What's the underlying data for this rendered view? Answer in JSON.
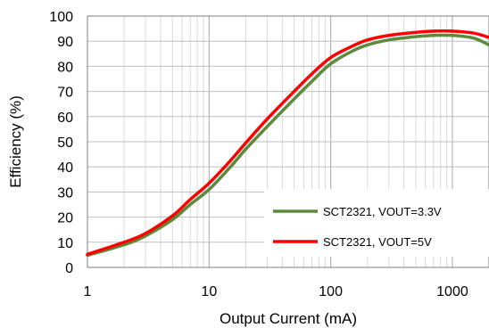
{
  "chart_data": {
    "type": "line",
    "title": "",
    "xlabel": "Output Current (mA)",
    "ylabel": "Efficiency (%)",
    "xscale": "log",
    "xlim": [
      1,
      2000
    ],
    "ylim": [
      0,
      100
    ],
    "xticks": [
      1,
      10,
      100,
      1000
    ],
    "xtick_labels": [
      "1",
      "10",
      "100",
      "1000"
    ],
    "yticks": [
      0,
      10,
      20,
      30,
      40,
      50,
      60,
      70,
      80,
      90,
      100
    ],
    "ytick_labels": [
      "0",
      "10",
      "20",
      "30",
      "40",
      "50",
      "60",
      "70",
      "80",
      "90",
      "100"
    ],
    "grid": true,
    "legend_position": "bottom-right",
    "series": [
      {
        "name": "SCT2321, VOUT=3.3V",
        "color": "#5b8a3a",
        "x": [
          1,
          2,
          3,
          5,
          7,
          10,
          15,
          20,
          30,
          50,
          70,
          100,
          150,
          200,
          300,
          500,
          700,
          1000,
          1500,
          2000
        ],
        "y": [
          4.8,
          9,
          12.5,
          19,
          25,
          31,
          40,
          47,
          56,
          67,
          74,
          81,
          86,
          88.5,
          90.5,
          91.8,
          92.3,
          92.3,
          91.2,
          88.5
        ]
      },
      {
        "name": "SCT2321, VOUT=5V",
        "color": "#ff0000",
        "x": [
          1,
          2,
          3,
          5,
          7,
          10,
          15,
          20,
          30,
          50,
          70,
          100,
          150,
          200,
          300,
          500,
          700,
          1000,
          1500,
          2000
        ],
        "y": [
          5.2,
          10,
          13.5,
          20.5,
          27,
          33.5,
          42.5,
          49.5,
          59,
          70,
          77,
          83.5,
          88,
          90.5,
          92.3,
          93.5,
          94,
          94,
          93.2,
          91.5
        ]
      }
    ]
  }
}
